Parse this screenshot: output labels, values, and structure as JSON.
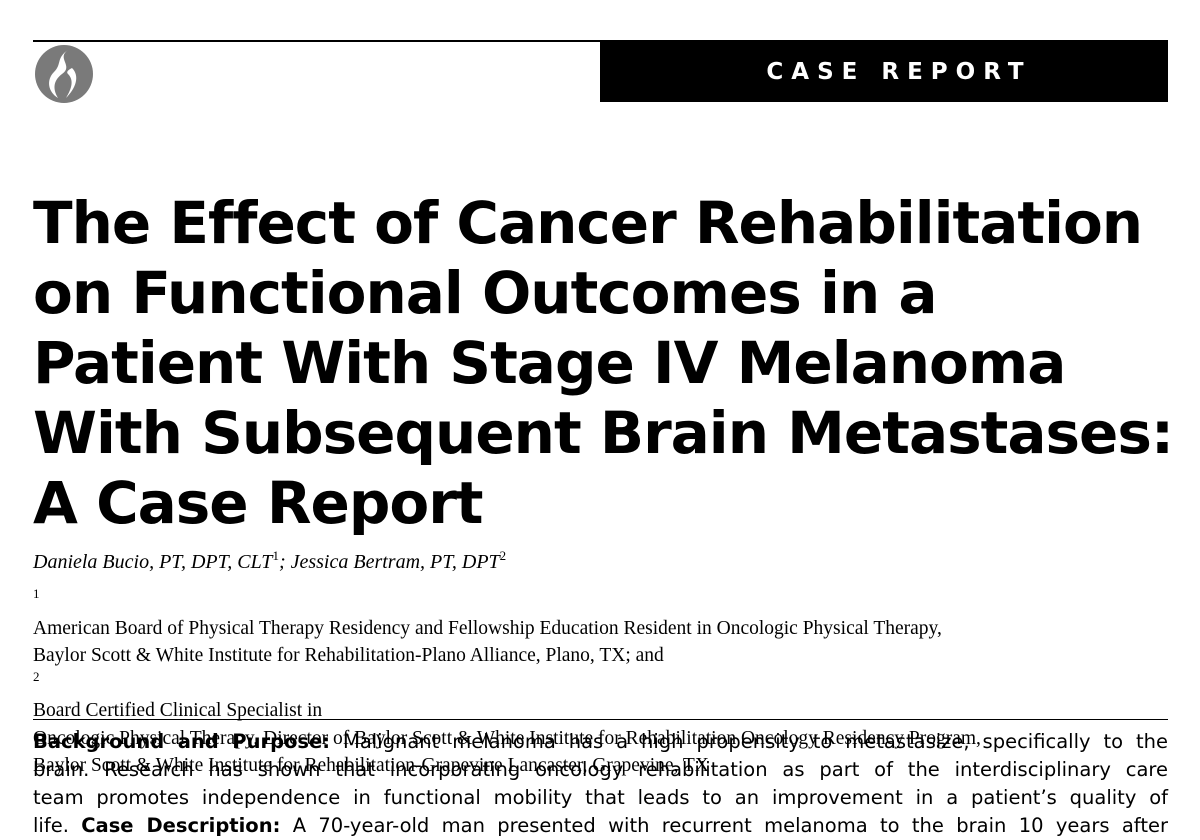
{
  "header": {
    "banner_label": "CASE REPORT"
  },
  "title": {
    "lines": [
      "The Effect of Cancer Rehabilitation",
      "on Functional Outcomes in a",
      "Patient With Stage IV Melanoma",
      "With Subsequent Brain Metastases:",
      "A Case Report"
    ]
  },
  "authors": {
    "author1": "Daniela Bucio, PT, DPT, CLT",
    "author1_sup": "1",
    "separator": "; ",
    "author2": "Jessica Bertram, PT, DPT",
    "author2_sup": "2"
  },
  "affiliations": {
    "line1_sup": "1",
    "line1": "American Board of Physical Therapy Residency and Fellowship Education Resident in Oncologic Physical Therapy,",
    "line2_a": "Baylor Scott & White Institute for Rehabilitation-Plano Alliance, Plano, TX; and ",
    "line2_sup": "2",
    "line2_b": "Board Certified Clinical Specialist in",
    "line3": "Oncologic Physical Therapy, Director of Baylor Scott & White Institute for Rehabilitation Oncology Residency Program,",
    "line4": "Baylor Scott & White Institute for Rehabilitation-Grapevine Lancaster, Grapevine, TX"
  },
  "abstract": {
    "heading1": "Background and Purpose:",
    "line1": " Malignant melanoma has a high propensity to metastasize, specifically to the",
    "line2": "brain. Research has shown that incorporating oncology rehabilitation as part of the interdisciplinary care",
    "line3": "team promotes independence in functional mobility that leads to an improvement in a patient’s quality of",
    "line4_a": "life. ",
    "heading2": "Case Description:",
    "line4_b": " A 70-year-old man presented with recurrent melanoma to the brain 10 years after"
  },
  "logo": {
    "icon": "journal-flame-logo-icon",
    "color": "#777777"
  }
}
